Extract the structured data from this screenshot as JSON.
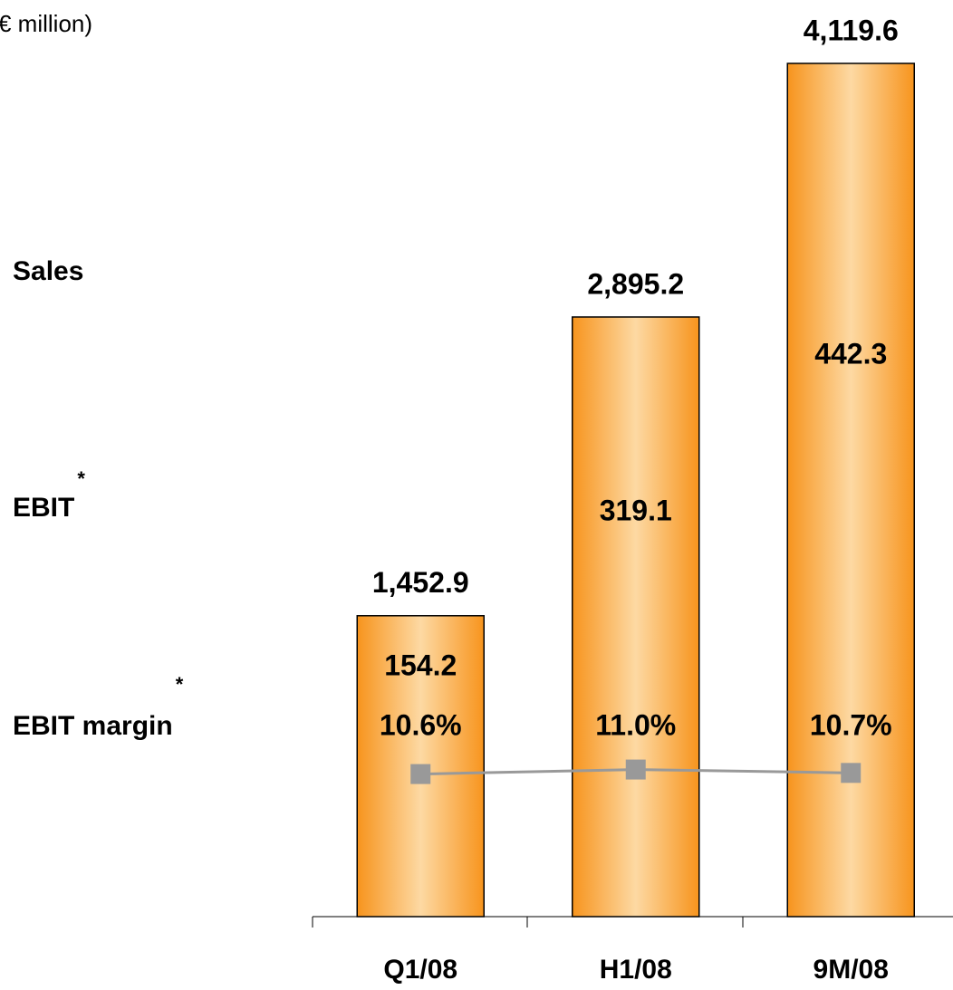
{
  "chart_data": {
    "type": "bar",
    "title": "€ million)",
    "categories": [
      "Q1/08",
      "H1/08",
      "9M/08"
    ],
    "ylim": [
      0,
      4119.6
    ],
    "y2lim": [
      -2,
      73.4
    ],
    "series": [
      {
        "name": "Sales",
        "type": "bar",
        "color": "#f7941d",
        "values": [
          1452.9,
          2895.2,
          4119.6
        ],
        "value_labels": [
          "1,452.9",
          "2,895.2",
          "4,119.6"
        ]
      },
      {
        "name": "EBIT",
        "type": "label",
        "note_mark": "*",
        "values": [
          154.2,
          319.1,
          442.3
        ]
      },
      {
        "name": "EBIT margin",
        "type": "line",
        "axis": "y2",
        "note_mark": "*",
        "color": "#999999",
        "values": [
          10.6,
          11.0,
          10.7
        ],
        "value_labels": [
          "10.6%",
          "11.0%",
          "10.7%"
        ]
      }
    ]
  }
}
